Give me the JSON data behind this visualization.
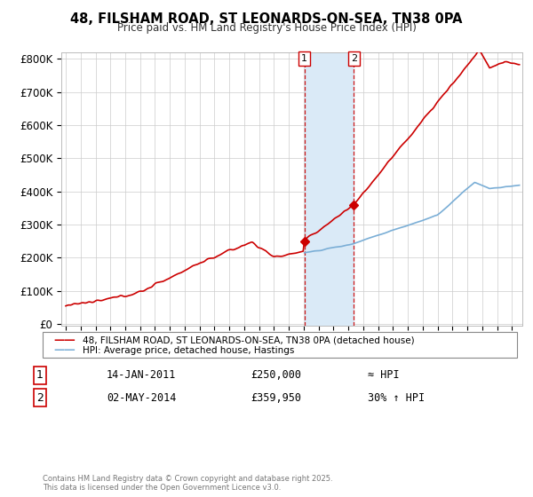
{
  "title": "48, FILSHAM ROAD, ST LEONARDS-ON-SEA, TN38 0PA",
  "subtitle": "Price paid vs. HM Land Registry's House Price Index (HPI)",
  "ylabel_ticks": [
    "£0",
    "£100K",
    "£200K",
    "£300K",
    "£400K",
    "£500K",
    "£600K",
    "£700K",
    "£800K"
  ],
  "ytick_vals": [
    0,
    100000,
    200000,
    300000,
    400000,
    500000,
    600000,
    700000,
    800000
  ],
  "ylim": [
    -5000,
    820000
  ],
  "xlim_start": 1994.7,
  "xlim_end": 2025.7,
  "purchase1": {
    "date": "14-JAN-2011",
    "price": 250000,
    "label": "1",
    "year": 2011.04
  },
  "purchase2": {
    "date": "02-MAY-2014",
    "price": 359950,
    "label": "2",
    "year": 2014.37
  },
  "legend_line1": "48, FILSHAM ROAD, ST LEONARDS-ON-SEA, TN38 0PA (detached house)",
  "legend_line2": "HPI: Average price, detached house, Hastings",
  "table_row1": [
    "1",
    "14-JAN-2011",
    "£250,000",
    "≈ HPI"
  ],
  "table_row2": [
    "2",
    "02-MAY-2014",
    "£359,950",
    "30% ↑ HPI"
  ],
  "footer": "Contains HM Land Registry data © Crown copyright and database right 2025.\nThis data is licensed under the Open Government Licence v3.0.",
  "red_color": "#cc0000",
  "blue_color": "#7aaed6",
  "highlight_color": "#daeaf7",
  "vline_color": "#cc0000"
}
